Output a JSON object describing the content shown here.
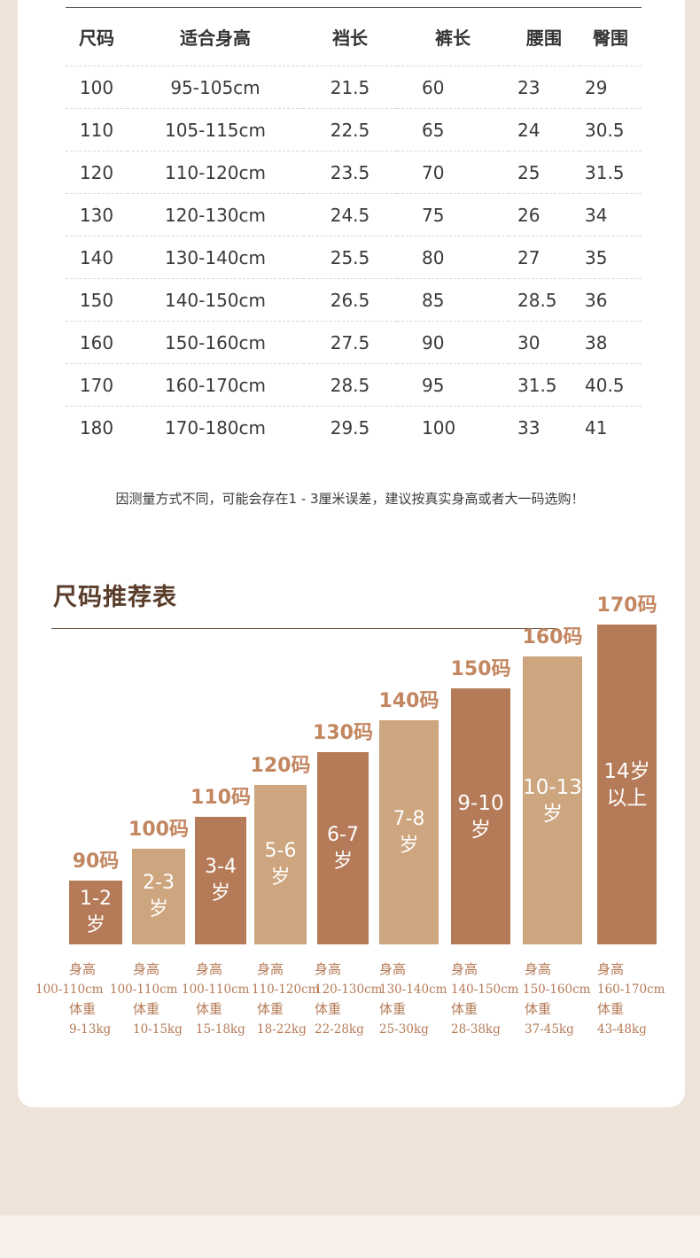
{
  "table": {
    "headers": [
      "尺码",
      "适合身高",
      "裆长",
      "裤长",
      "腰围",
      "臀围"
    ],
    "rows": [
      [
        "100",
        "95-105cm",
        "21.5",
        "60",
        "23",
        "29"
      ],
      [
        "110",
        "105-115cm",
        "22.5",
        "65",
        "24",
        "30.5"
      ],
      [
        "120",
        "110-120cm",
        "23.5",
        "70",
        "25",
        "31.5"
      ],
      [
        "130",
        "120-130cm",
        "24.5",
        "75",
        "26",
        "34"
      ],
      [
        "140",
        "130-140cm",
        "25.5",
        "80",
        "27",
        "35"
      ],
      [
        "150",
        "140-150cm",
        "26.5",
        "85",
        "28.5",
        "36"
      ],
      [
        "160",
        "150-160cm",
        "27.5",
        "90",
        "30",
        "38"
      ],
      [
        "170",
        "160-170cm",
        "28.5",
        "95",
        "31.5",
        "40.5"
      ],
      [
        "180",
        "170-180cm",
        "29.5",
        "100",
        "33",
        "41"
      ]
    ]
  },
  "note": "因测量方式不同，可能会存在1 - 3厘米误差，建议按真实身高或者大一码选购！",
  "recommend": {
    "title": "尺码推荐表",
    "height_label": "身高",
    "weight_label": "体重"
  },
  "colors": {
    "dark": "#b57a57",
    "light": "#cda57e",
    "label": "#c28660"
  },
  "chart_data": {
    "type": "bar",
    "categories": [
      "90码",
      "100码",
      "110码",
      "120码",
      "130码",
      "140码",
      "150码",
      "160码",
      "170码"
    ],
    "bar_text": [
      "1-2\n岁",
      "2-3\n岁",
      "3-4\n岁",
      "5-6\n岁",
      "6-7\n岁",
      "7-8\n岁",
      "9-10\n岁",
      "10-13\n岁",
      "14岁\n以上"
    ],
    "heights": [
      "100-110cm",
      "100-110cm",
      "100-110cm",
      "110-120cm",
      "120-130cm",
      "130-140cm",
      "140-150cm",
      "150-160cm",
      "160-170cm"
    ],
    "weights": [
      "9-13kg",
      "10-15kg",
      "15-18kg",
      "18-22kg",
      "22-28kg",
      "25-30kg",
      "28-38kg",
      "37-45kg",
      "43-48kg"
    ],
    "values": [
      90,
      100,
      110,
      120,
      130,
      140,
      150,
      160,
      170
    ],
    "bar_colors": [
      "#b57a57",
      "#cda57e",
      "#b57a57",
      "#cda57e",
      "#b57a57",
      "#cda57e",
      "#b57a57",
      "#cda57e",
      "#b57a57"
    ]
  }
}
